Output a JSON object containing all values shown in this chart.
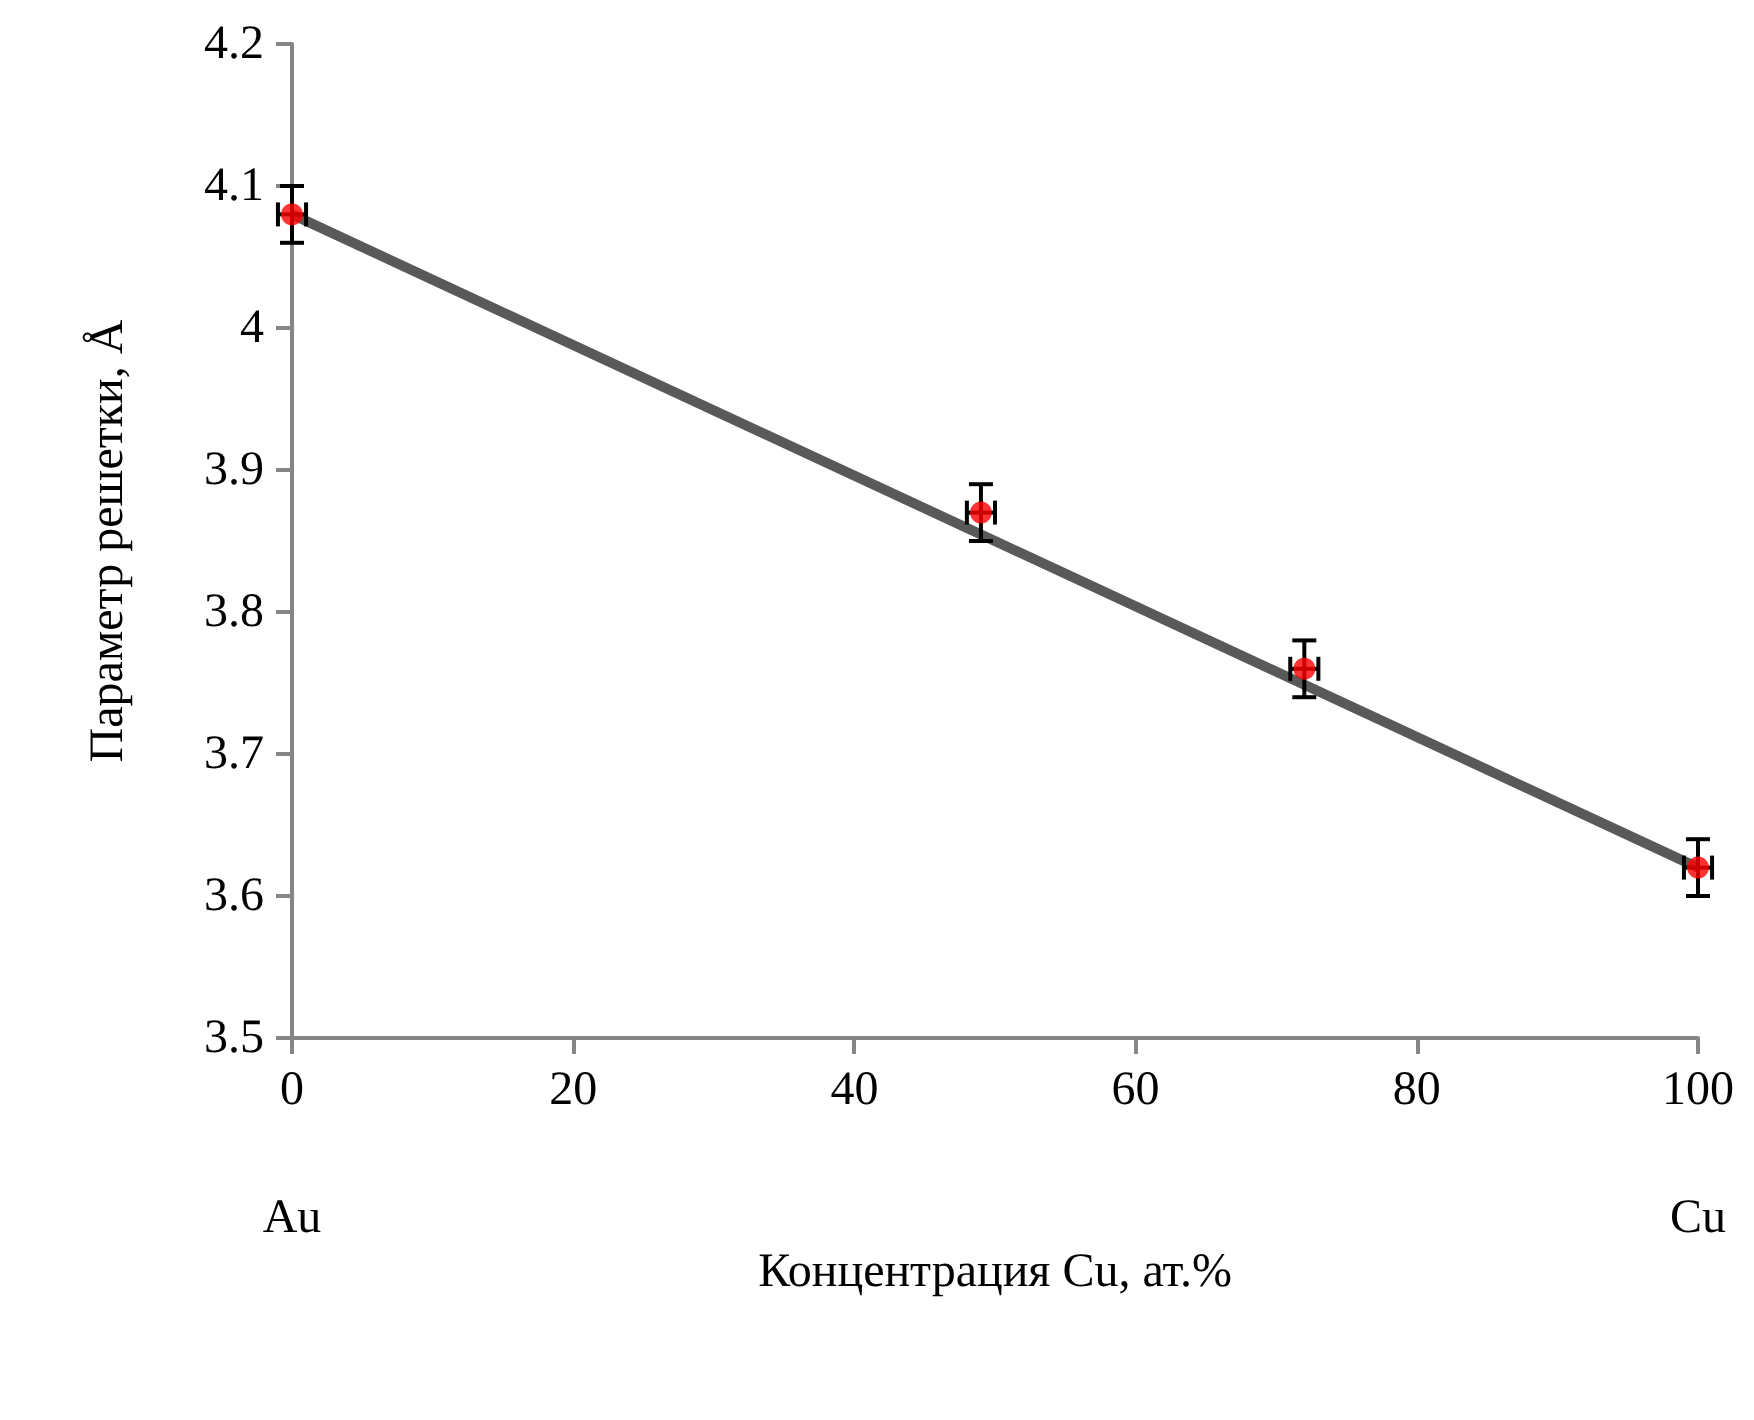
{
  "chart_data": {
    "type": "scatter",
    "xlabel": "Концентрация Cu, ат.%",
    "ylabel": "Параметр решетки, Å",
    "xlim": [
      0,
      100
    ],
    "xticks": [
      0,
      20,
      40,
      60,
      80,
      100
    ],
    "ylim": [
      3.5,
      4.2
    ],
    "yticks": [
      3.5,
      3.6,
      3.7,
      3.8,
      3.9,
      4,
      4.1,
      4.2
    ],
    "grid": false,
    "annotations": [
      "Au",
      "Cu"
    ],
    "series": [
      {
        "type": "line",
        "color": "#595959",
        "marker": "none",
        "line_style": "solid",
        "x": [
          0,
          100
        ],
        "values": [
          4.08,
          3.62
        ]
      },
      {
        "color": "#ff0000",
        "marker": "circle",
        "x": [
          0,
          49,
          72,
          100
        ],
        "values": [
          4.08,
          3.87,
          3.76,
          3.62
        ],
        "errors": [
          0.02,
          0.02,
          0.02,
          0.02
        ],
        "xerrors": [
          1,
          1,
          1,
          1
        ]
      }
    ]
  }
}
